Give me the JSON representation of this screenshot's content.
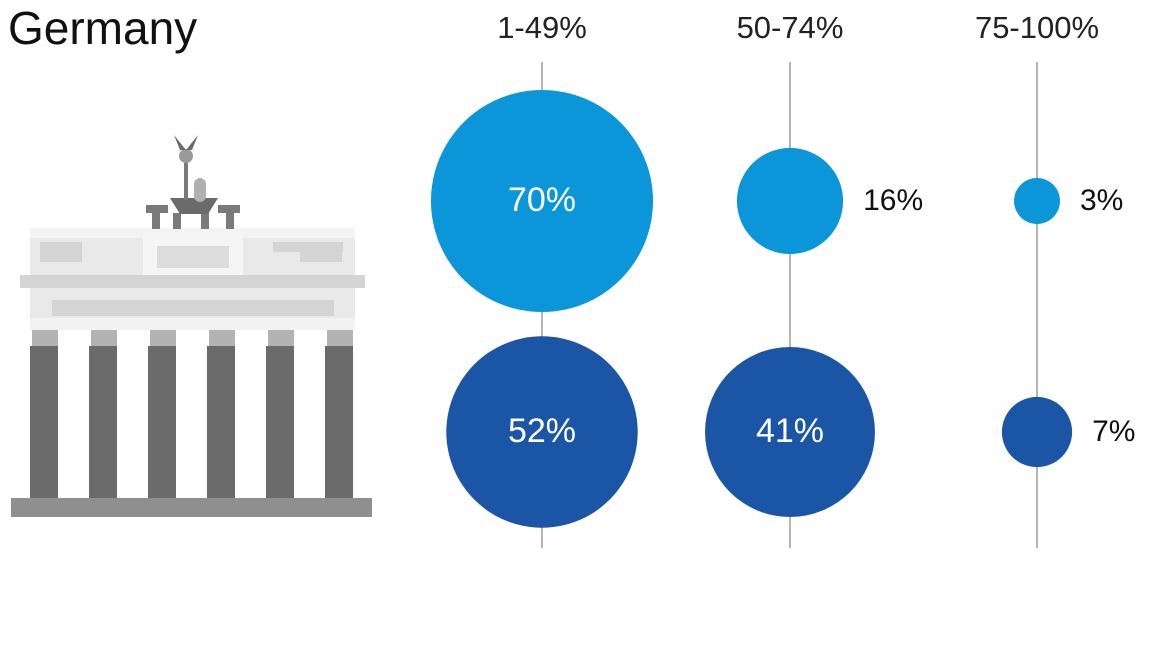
{
  "chart_data": {
    "type": "bubble",
    "title": "Germany",
    "categories": [
      "1-49%",
      "50-74%",
      "75-100%"
    ],
    "series": [
      {
        "color": "#0a96d8",
        "values": [
          70,
          16,
          3
        ],
        "value_labels": [
          "70%",
          "16%",
          "3%"
        ]
      },
      {
        "color": "#1a56a5",
        "values": [
          52,
          41,
          7
        ],
        "value_labels": [
          "52%",
          "41%",
          "7%"
        ]
      }
    ]
  }
}
